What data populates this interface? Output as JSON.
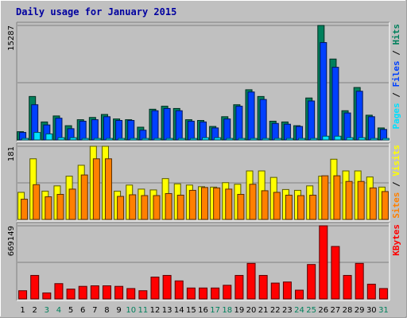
{
  "chart_data": {
    "type": "bar",
    "title": "Daily usage for January 2015",
    "categories": [
      "1",
      "2",
      "3",
      "4",
      "5",
      "6",
      "7",
      "8",
      "9",
      "10",
      "11",
      "12",
      "13",
      "14",
      "15",
      "16",
      "17",
      "18",
      "19",
      "20",
      "21",
      "22",
      "23",
      "24",
      "25",
      "26",
      "27",
      "28",
      "29",
      "30",
      "31"
    ],
    "weekend_days": [
      "3",
      "4",
      "10",
      "11",
      "17",
      "18",
      "24",
      "25",
      "31"
    ],
    "colors": {
      "hits": "#00805c",
      "files": "#0040ff",
      "pages": "#00e0ff",
      "visits": "#ffff00",
      "sites": "#ff8000",
      "kbytes": "#ff0000",
      "weekday_label": "#000000",
      "weekend_label": "#00805c",
      "title": "#0000a0",
      "panel_bg": "#c0c0c0",
      "gridline": "#808080"
    },
    "panels": [
      {
        "name": "hits-files-pages",
        "max_label": "15287",
        "ylim": [
          0,
          15287
        ],
        "legend": [
          {
            "key": "pages",
            "label": "Pages"
          },
          {
            "key": "files",
            "label": "Files"
          },
          {
            "key": "hits",
            "label": "Hits"
          }
        ],
        "series": [
          {
            "key": "hits",
            "name": "Hits",
            "values": [
              1100,
              5800,
              2400,
              3200,
              1900,
              2700,
              3000,
              3400,
              2800,
              2700,
              1700,
              4100,
              4500,
              4200,
              2700,
              2600,
              1800,
              3100,
              4700,
              6700,
              5800,
              2500,
              2400,
              1900,
              5600,
              15287,
              10800,
              3900,
              7000,
              3300,
              1600
            ]
          },
          {
            "key": "files",
            "name": "Files",
            "values": [
              1000,
              4700,
              2000,
              2900,
              1500,
              2500,
              2700,
              3100,
              2600,
              2600,
              1300,
              3900,
              4200,
              3900,
              2500,
              2400,
              1600,
              2800,
              4500,
              6400,
              5400,
              2200,
              2100,
              1800,
              5200,
              13000,
              9700,
              3600,
              6500,
              3100,
              1400
            ]
          },
          {
            "key": "pages",
            "name": "Pages",
            "values": [
              200,
              1000,
              800,
              300,
              300,
              200,
              200,
              200,
              200,
              200,
              200,
              200,
              200,
              200,
              200,
              300,
              300,
              200,
              200,
              200,
              200,
              200,
              200,
              200,
              200,
              500,
              500,
              300,
              300,
              200,
              200
            ]
          }
        ]
      },
      {
        "name": "visits-sites",
        "max_label": "181",
        "ylim": [
          0,
          181
        ],
        "legend": [
          {
            "key": "sites",
            "label": "Sites"
          },
          {
            "key": "visits",
            "label": "Visits"
          }
        ],
        "series": [
          {
            "key": "visits",
            "name": "Visits",
            "values": [
              67,
              150,
              70,
              83,
              107,
              134,
              181,
              181,
              70,
              85,
              75,
              73,
              101,
              88,
              85,
              81,
              80,
              91,
              87,
              120,
              120,
              104,
              74,
              72,
              83,
              107,
              149,
              120,
              120,
              105,
              80
            ]
          },
          {
            "key": "sites",
            "name": "Sites",
            "values": [
              50,
              86,
              56,
              62,
              75,
              110,
              150,
              150,
              57,
              61,
              59,
              59,
              64,
              60,
              72,
              79,
              78,
              75,
              62,
              87,
              71,
              67,
              60,
              59,
              60,
              108,
              108,
              94,
              94,
              78,
              69
            ]
          }
        ]
      },
      {
        "name": "kbytes",
        "max_label": "669149",
        "ylim": [
          0,
          669149
        ],
        "legend": [
          {
            "key": "kbytes",
            "label": "KBytes"
          }
        ],
        "series": [
          {
            "key": "kbytes",
            "name": "KBytes",
            "values": [
              75000,
              215000,
              55000,
              140000,
              90000,
              115000,
              120000,
              120000,
              115000,
              95000,
              75000,
              200000,
              215000,
              165000,
              100000,
              100000,
              100000,
              125000,
              215000,
              325000,
              215000,
              145000,
              155000,
              80000,
              315000,
              669149,
              480000,
              215000,
              325000,
              135000,
              95000
            ]
          }
        ]
      }
    ]
  }
}
